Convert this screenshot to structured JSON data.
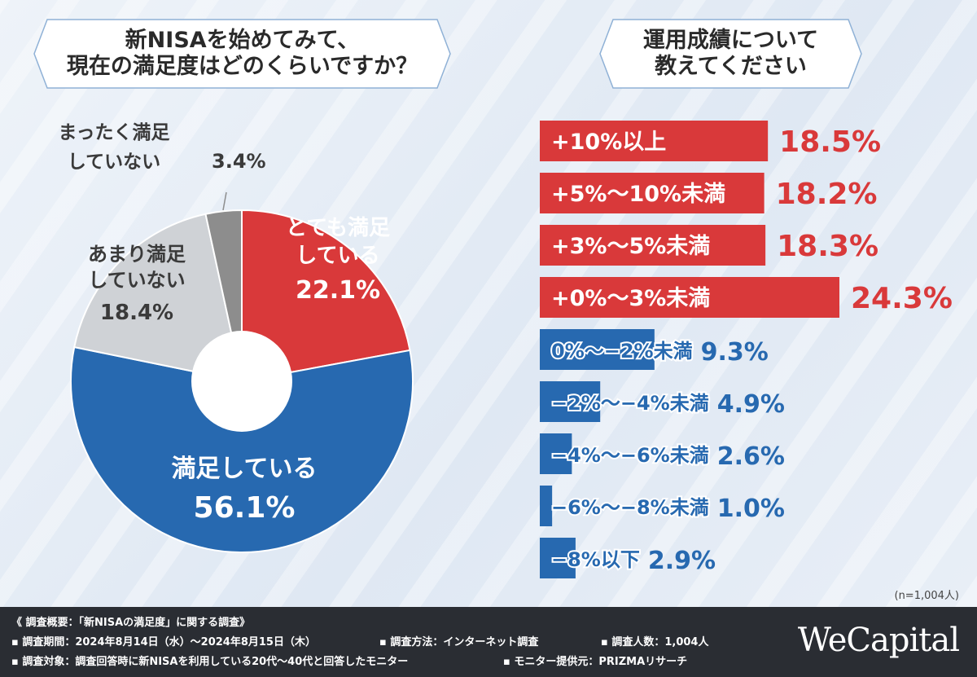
{
  "questions": {
    "left_line1": "新NISAを始めてみて、",
    "left_line2": "現在の満足度はどのくらいですか？",
    "right_line1": "運用成績について",
    "right_line2": "教えてください"
  },
  "chart_data": [
    {
      "type": "pie",
      "title": "新NISAを始めてみて、現在の満足度はどのくらいですか？",
      "donut": true,
      "slices": [
        {
          "label_lines": [
            "とても満足",
            "している"
          ],
          "value": 22.1,
          "value_text": "22.1%",
          "color": "#d9393a"
        },
        {
          "label_lines": [
            "満足している"
          ],
          "value": 56.1,
          "value_text": "56.1%",
          "color": "#2769b0"
        },
        {
          "label_lines": [
            "あまり満足",
            "していない"
          ],
          "value": 18.4,
          "value_text": "18.4%",
          "color": "#cfd2d6"
        },
        {
          "label_lines": [
            "まったく満足",
            "していない"
          ],
          "value": 3.4,
          "value_text": "3.4%",
          "color": "#8d8d8d"
        }
      ]
    },
    {
      "type": "bar",
      "orientation": "horizontal",
      "title": "運用成績について教えてください",
      "categories": [
        "+10%以上",
        "+5%〜10%未満",
        "+3%〜5%未満",
        "+0%〜3%未満",
        "0%〜−2%未満",
        "−2%〜−4%未満",
        "−4%〜−6%未満",
        "−6%〜−8%未満",
        "−8%以下"
      ],
      "values": [
        18.5,
        18.2,
        18.3,
        24.3,
        9.3,
        4.9,
        2.6,
        1.0,
        2.9
      ],
      "value_texts": [
        "18.5%",
        "18.2%",
        "18.3%",
        "24.3%",
        "9.3%",
        "4.9%",
        "2.6%",
        "1.0%",
        "2.9%"
      ],
      "colors": {
        "positive": "#d9393a",
        "negative": "#2769b0"
      },
      "xlim": [
        0,
        24.3
      ]
    }
  ],
  "sample_note": "(n=1,004人)",
  "footer": {
    "line1": "《 調査概要：「新NISAの満足度」に関する調査》",
    "line2a": "▪ 調査期間：2024年8月14日（水）〜2024年8月15日（木）",
    "line2b": "▪ 調査方法：インターネット調査",
    "line2c": "▪ 調査人数：1,004人",
    "line3a": "▪ 調査対象：調査回答時に新NISAを利用している20代〜40代と回答したモニター",
    "line3b": "▪ モニター提供元：PRIZMAリサーチ",
    "brand": "WeCapital"
  }
}
